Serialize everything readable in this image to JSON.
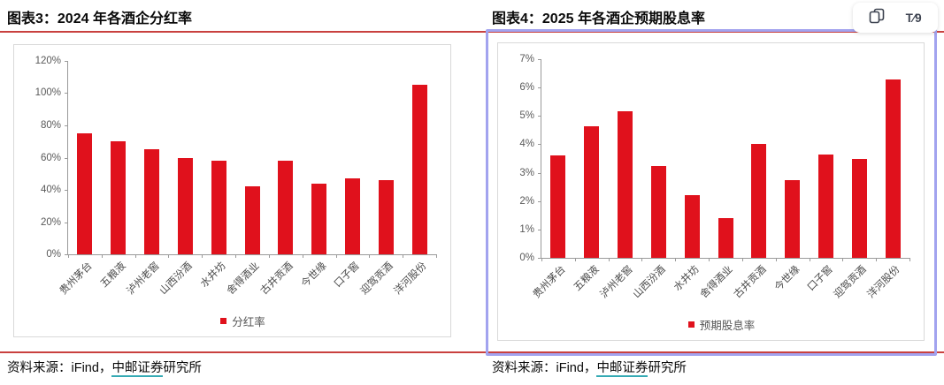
{
  "chart_data": [
    {
      "type": "bar",
      "title": "图表3：2024 年各酒企分红率",
      "legend": "分红率",
      "categories": [
        "贵州茅台",
        "五粮液",
        "泸州老窖",
        "山西汾酒",
        "水井坊",
        "舍得酒业",
        "古井贡酒",
        "今世缘",
        "口子窖",
        "迎驾贡酒",
        "洋河股份"
      ],
      "values": [
        75,
        70,
        65,
        60,
        58,
        42,
        58,
        44,
        47,
        46,
        105
      ],
      "unit": "%",
      "ylim": [
        0,
        120
      ],
      "y_tick_values": [
        0,
        20,
        40,
        60,
        80,
        100,
        120
      ],
      "y_tick_labels": [
        "0%",
        "20%",
        "40%",
        "60%",
        "80%",
        "100%",
        "120%"
      ],
      "grid": false,
      "legend_position": "bottom",
      "source": {
        "prefix": "资料来源：iFind，",
        "link": "中邮证券",
        "suffix": "研究所"
      }
    },
    {
      "type": "bar",
      "title": "图表4：2025 年各酒企预期股息率",
      "legend": "预期股息率",
      "categories": [
        "贵州茅台",
        "五粮液",
        "泸州老窖",
        "山西汾酒",
        "水井坊",
        "舍得酒业",
        "古井贡酒",
        "今世缘",
        "口子窖",
        "迎驾贡酒",
        "洋河股份"
      ],
      "values": [
        3.6,
        4.65,
        5.15,
        3.25,
        2.2,
        1.4,
        4.0,
        2.75,
        3.65,
        3.5,
        6.3
      ],
      "unit": "%",
      "ylim": [
        0,
        7
      ],
      "y_tick_values": [
        0,
        1,
        2,
        3,
        4,
        5,
        6,
        7
      ],
      "y_tick_labels": [
        "0%",
        "1%",
        "2%",
        "3%",
        "4%",
        "5%",
        "6%",
        "7%"
      ],
      "grid": false,
      "legend_position": "bottom",
      "source": {
        "prefix": "资料来源：iFind，",
        "link": "中邮证券",
        "suffix": "研究所"
      }
    }
  ],
  "toolbar": {
    "copy_icon": "copy-pages-icon",
    "translate_button_label": "T⁄9"
  },
  "colors": {
    "bar_red": "#e0111c",
    "rule_red": "#c9413f",
    "selection_purple": "#a2a3ef",
    "link_teal": "#35aab4",
    "chart_border": "#d9d9d9",
    "axis_gray": "#9a9a9a",
    "tick_text": "#595959"
  }
}
